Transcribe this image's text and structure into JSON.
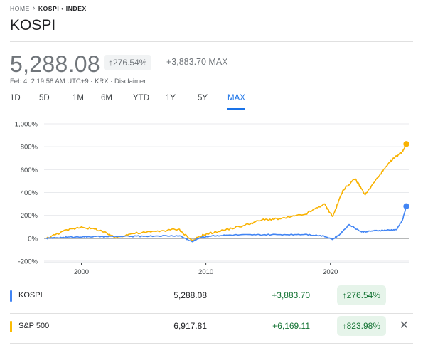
{
  "breadcrumb": {
    "home": "HOME",
    "current": "KOSPI • INDEX"
  },
  "title": "KOSPI",
  "quote": {
    "price": "5,288.08",
    "change_pct": "↑276.54%",
    "change_abs": "+3,883.70 MAX",
    "meta": "Feb 4, 2:19:58 AM UTC+9 · KRX · Disclaimer"
  },
  "tabs": [
    "1D",
    "5D",
    "1M",
    "6M",
    "YTD",
    "1Y",
    "5Y",
    "MAX"
  ],
  "active_tab": "MAX",
  "chart_data": {
    "type": "line",
    "y_ticks": [
      "1,000%",
      "800%",
      "600%",
      "400%",
      "200%",
      "0%",
      "-200%"
    ],
    "ylim": [
      -200,
      1000
    ],
    "x_ticks": [
      2000,
      2010,
      2020
    ],
    "xlim": [
      1997.0,
      2026.3
    ],
    "series": [
      {
        "name": "KOSPI",
        "color": "#4285f4",
        "points": [
          [
            1997.2,
            0
          ],
          [
            1998,
            5
          ],
          [
            1999.5,
            12
          ],
          [
            2000.5,
            14
          ],
          [
            2002,
            15
          ],
          [
            2004,
            17
          ],
          [
            2006,
            20
          ],
          [
            2007.9,
            22
          ],
          [
            2008.9,
            -30
          ],
          [
            2009.5,
            5
          ],
          [
            2010.5,
            22
          ],
          [
            2012,
            28
          ],
          [
            2014,
            30
          ],
          [
            2016,
            32
          ],
          [
            2018,
            35
          ],
          [
            2019.5,
            20
          ],
          [
            2020.2,
            -10
          ],
          [
            2020.8,
            40
          ],
          [
            2021.5,
            120
          ],
          [
            2022.5,
            55
          ],
          [
            2023.5,
            65
          ],
          [
            2024.5,
            70
          ],
          [
            2025.3,
            75
          ],
          [
            2025.8,
            160
          ],
          [
            2026.1,
            280
          ]
        ]
      },
      {
        "name": "S&P 500",
        "color": "#f9b200",
        "points": [
          [
            1997.2,
            0
          ],
          [
            1998.5,
            60
          ],
          [
            2000,
            100
          ],
          [
            2001.5,
            70
          ],
          [
            2002.7,
            5
          ],
          [
            2004,
            40
          ],
          [
            2006,
            60
          ],
          [
            2007.8,
            80
          ],
          [
            2008.9,
            -20
          ],
          [
            2009.8,
            30
          ],
          [
            2011,
            60
          ],
          [
            2013,
            110
          ],
          [
            2014.5,
            160
          ],
          [
            2016,
            170
          ],
          [
            2018,
            210
          ],
          [
            2019.5,
            300
          ],
          [
            2020.2,
            190
          ],
          [
            2021,
            420
          ],
          [
            2022,
            520
          ],
          [
            2022.8,
            380
          ],
          [
            2024,
            560
          ],
          [
            2025,
            690
          ],
          [
            2025.8,
            760
          ],
          [
            2026.1,
            824
          ]
        ]
      }
    ]
  },
  "comparisons": [
    {
      "name": "KOSPI",
      "color": "#4285f4",
      "value": "5,288.08",
      "change_abs": "+3,883.70",
      "change_pct": "↑276.54%",
      "removable": false
    },
    {
      "name": "S&P 500",
      "color": "#fbbc04",
      "value": "6,917.81",
      "change_abs": "+6,169.11",
      "change_pct": "↑823.98%",
      "removable": true
    }
  ],
  "close_glyph": "✕"
}
